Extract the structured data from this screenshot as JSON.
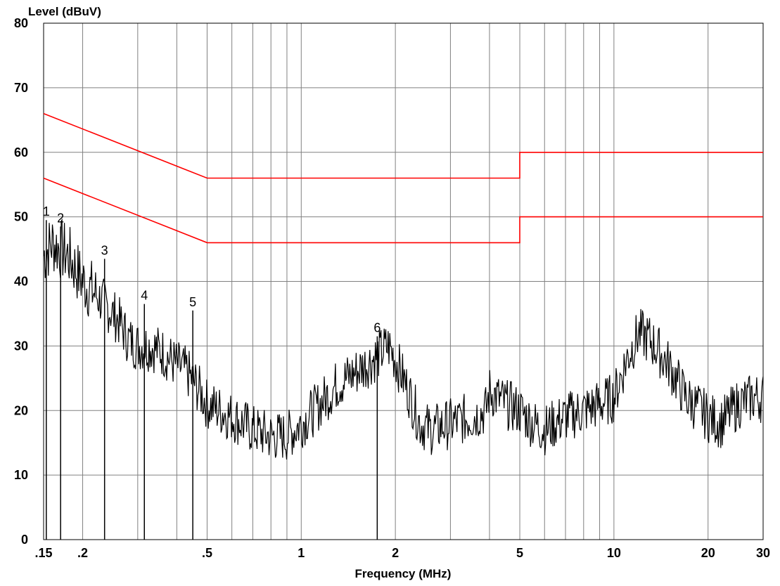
{
  "chart_data": {
    "type": "line",
    "title": "",
    "xlabel": "Frequency (MHz)",
    "ylabel": "Level (dBuV)",
    "x_scale": "log",
    "xlim": [
      0.15,
      30
    ],
    "ylim": [
      0,
      80
    ],
    "grid": true,
    "x_ticks": [
      {
        "value": 0.15,
        "label": ".15"
      },
      {
        "value": 0.2,
        "label": ".2"
      },
      {
        "value": 0.5,
        "label": ".5"
      },
      {
        "value": 1,
        "label": "1"
      },
      {
        "value": 2,
        "label": "2"
      },
      {
        "value": 5,
        "label": "5"
      },
      {
        "value": 10,
        "label": "10"
      },
      {
        "value": 20,
        "label": "20"
      },
      {
        "value": 30,
        "label": "30"
      }
    ],
    "y_ticks": [
      {
        "value": 0,
        "label": "0"
      },
      {
        "value": 10,
        "label": "10"
      },
      {
        "value": 20,
        "label": "20"
      },
      {
        "value": 30,
        "label": "30"
      },
      {
        "value": 40,
        "label": "40"
      },
      {
        "value": 50,
        "label": "50"
      },
      {
        "value": 60,
        "label": "60"
      },
      {
        "value": 70,
        "label": "70"
      },
      {
        "value": 80,
        "label": "80"
      }
    ],
    "series": [
      {
        "color": "#ff0000",
        "x": [
          0.15,
          0.5,
          0.5,
          5,
          5,
          30
        ],
        "y": [
          66,
          56,
          56,
          56,
          60,
          60
        ]
      },
      {
        "color": "#ff0000",
        "x": [
          0.15,
          0.5,
          0.5,
          5,
          5,
          30
        ],
        "y": [
          56,
          46,
          46,
          46,
          50,
          50
        ]
      },
      {
        "color": "#000000",
        "x": [
          0.15,
          0.16,
          0.17,
          0.18,
          0.19,
          0.2,
          0.22,
          0.24,
          0.26,
          0.28,
          0.3,
          0.33,
          0.36,
          0.4,
          0.43,
          0.46,
          0.5,
          0.55,
          0.6,
          0.65,
          0.7,
          0.8,
          0.9,
          1.0,
          1.1,
          1.2,
          1.3,
          1.5,
          1.7,
          1.8,
          1.9,
          2.0,
          2.2,
          2.4,
          2.6,
          3.0,
          3.5,
          3.9,
          4.0,
          4.5,
          5.0,
          5.5,
          6.0,
          7.0,
          8.0,
          9.0,
          10.0,
          11.0,
          12.0,
          13.0,
          14.0,
          15.0,
          17.0,
          19.0,
          20.0,
          22.0,
          25.0,
          28.0,
          30.0
        ],
        "y": [
          44,
          46,
          45,
          44,
          42,
          40,
          38,
          36,
          34,
          31,
          30,
          30,
          29,
          27,
          26,
          24,
          21,
          20,
          19,
          18,
          17,
          16,
          16,
          18,
          20,
          22,
          24,
          26,
          28,
          29,
          30,
          28,
          23,
          18,
          17,
          18,
          19,
          20,
          23,
          21,
          20,
          18,
          17,
          19,
          20,
          21,
          22,
          28,
          32,
          31,
          29,
          27,
          22,
          20,
          19,
          18,
          21,
          22,
          22
        ]
      }
    ],
    "markers": [
      {
        "label": "1",
        "x": 0.153,
        "y": 49.5
      },
      {
        "label": "2",
        "x": 0.17,
        "y": 48.5
      },
      {
        "label": "3",
        "x": 0.235,
        "y": 43.5
      },
      {
        "label": "4",
        "x": 0.315,
        "y": 36.5
      },
      {
        "label": "5",
        "x": 0.45,
        "y": 35.5
      },
      {
        "label": "6",
        "x": 1.75,
        "y": 31.5
      }
    ]
  }
}
